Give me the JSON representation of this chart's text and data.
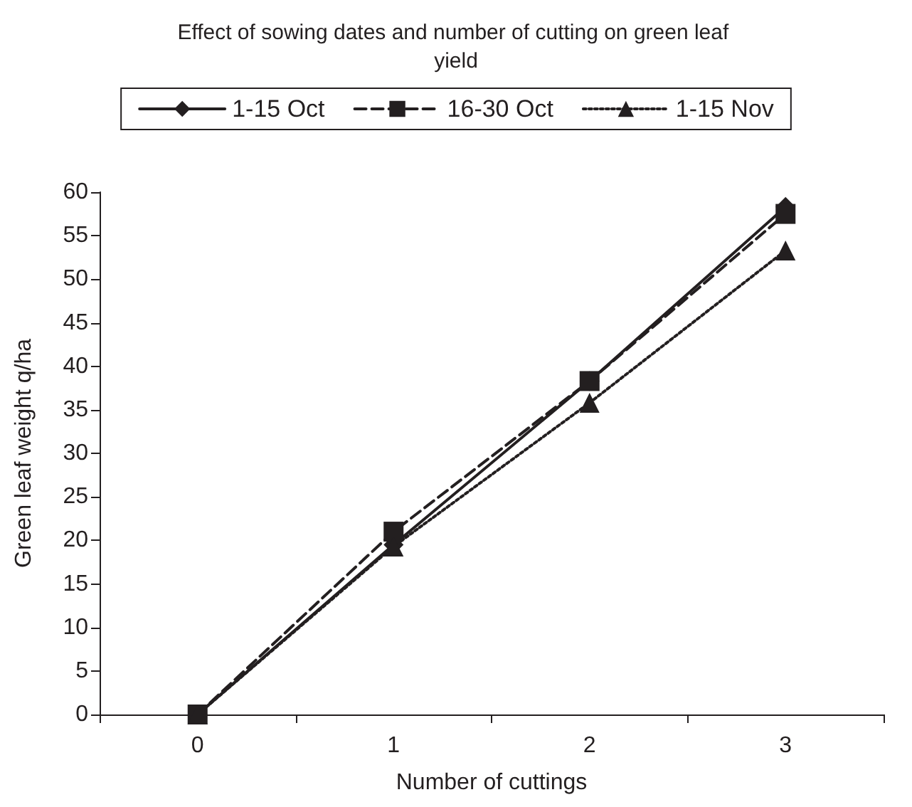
{
  "chart_data": {
    "type": "line",
    "title": "Effect of sowing dates and number of cutting on green leaf yield",
    "xlabel": "Number of cuttings",
    "ylabel": "Green leaf weight q/ha",
    "categories": [
      "0",
      "1",
      "2",
      "3"
    ],
    "series": [
      {
        "name": "1-15 Oct",
        "color": "#231f20",
        "values": [
          0,
          19.5,
          38.3,
          58.3
        ],
        "marker": "diamond",
        "line_style": "solid"
      },
      {
        "name": "16-30 Oct",
        "color": "#231f20",
        "values": [
          0,
          21,
          38.3,
          57.5
        ],
        "marker": "square",
        "line_style": "dashed"
      },
      {
        "name": "1-15 Nov",
        "color": "#231f20",
        "values": [
          0,
          19.3,
          35.8,
          53.3
        ],
        "marker": "triangle",
        "line_style": "dotted"
      }
    ],
    "ylim": [
      0,
      60
    ],
    "yticks": [
      0,
      5,
      10,
      15,
      20,
      25,
      30,
      35,
      40,
      45,
      50,
      55,
      60
    ],
    "grid": false,
    "legend": "top"
  }
}
